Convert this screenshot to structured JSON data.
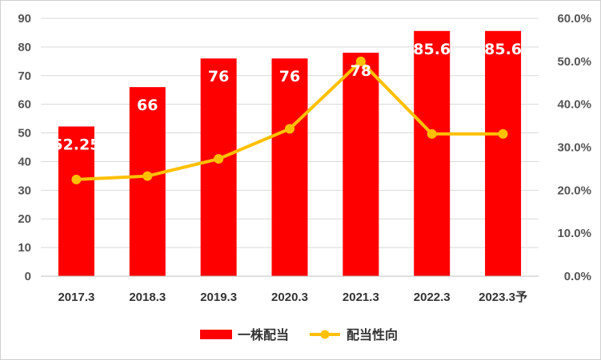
{
  "chart_data": {
    "type": "bar",
    "categories": [
      "2017.3",
      "2018.3",
      "2019.3",
      "2020.3",
      "2021.3",
      "2022.3",
      "2023.3予"
    ],
    "series": [
      {
        "name": "一株配当",
        "type": "bar",
        "axis": "left",
        "values": [
          52.25,
          66,
          76,
          76,
          78,
          85.6,
          85.6
        ],
        "data_labels": [
          "52.25",
          "66",
          "76",
          "76",
          "78",
          "85.6",
          "85.6"
        ],
        "color": "#ff0000"
      },
      {
        "name": "配当性向",
        "type": "line",
        "axis": "right",
        "values": [
          22.5,
          23.3,
          27.3,
          34.3,
          50.0,
          33.1,
          33.1
        ],
        "color": "#ffc000"
      }
    ],
    "y_left": {
      "min": 0,
      "max": 90,
      "step": 10,
      "ticks": [
        "0",
        "10",
        "20",
        "30",
        "40",
        "50",
        "60",
        "70",
        "80",
        "90"
      ]
    },
    "y_right": {
      "min": 0,
      "max": 60,
      "step": 10,
      "ticks": [
        "0.0%",
        "10.0%",
        "20.0%",
        "30.0%",
        "40.0%",
        "50.0%",
        "60.0%"
      ]
    },
    "grid": true,
    "legend": "bottom",
    "title": "",
    "xlabel": "",
    "ylabel": ""
  }
}
